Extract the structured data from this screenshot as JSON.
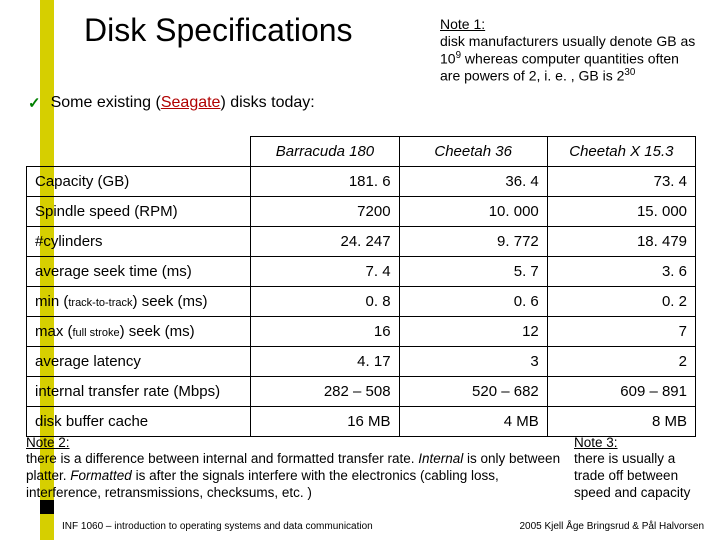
{
  "title": "Disk Specifications",
  "note1": {
    "label": "Note 1:",
    "text_parts": [
      "disk manufacturers usually denote GB as 10",
      "9",
      " whereas computer quantities often are powers of 2, i. e. , GB is 2",
      "30"
    ]
  },
  "bullet": {
    "prefix": "Some existing (",
    "vendor": "Seagate",
    "suffix": ") disks today:"
  },
  "table": {
    "headers": [
      "Barracuda 180",
      "Cheetah 36",
      "Cheetah X 15.3"
    ],
    "rows": [
      {
        "label": "Capacity (GB)",
        "vals": [
          "181. 6",
          "36. 4",
          "73. 4"
        ]
      },
      {
        "label": "Spindle speed (RPM)",
        "vals": [
          "7200",
          "10. 000",
          "15. 000"
        ]
      },
      {
        "label": "#cylinders",
        "vals": [
          "24. 247",
          "9. 772",
          "18. 479"
        ]
      },
      {
        "label": "average seek time (ms)",
        "vals": [
          "7. 4",
          "5. 7",
          "3. 6"
        ]
      },
      {
        "label": "min (|track-to-track|) seek (ms)",
        "tiny_sub": true,
        "vals": [
          "0. 8",
          "0. 6",
          "0. 2"
        ]
      },
      {
        "label": "max (|full stroke|) seek (ms)",
        "tiny_sub": true,
        "vals": [
          "16",
          "12",
          "7"
        ]
      },
      {
        "label": "average latency",
        "vals": [
          "4. 17",
          "3",
          "2"
        ]
      },
      {
        "label": "internal transfer rate (Mbps)",
        "vals": [
          "282 – 508",
          "520 – 682",
          "609 – 891"
        ]
      },
      {
        "label": "disk buffer cache",
        "vals": [
          "16 MB",
          "4 MB",
          "8 MB"
        ]
      }
    ]
  },
  "note2": {
    "label": "Note 2:",
    "text_parts": [
      "there is a difference between internal and formatted transfer rate. ",
      "Internal",
      " is only between platter. ",
      "Formatted",
      "  is after the signals interfere with the electronics (cabling loss, interference, retransmissions, checksums, etc. )"
    ]
  },
  "note3": {
    "label": "Note 3:",
    "text": "there is usually a trade off between speed and capacity"
  },
  "footer": {
    "left": "INF 1060 – introduction to operating systems and data communication",
    "right": "2005 Kjell Åge Bringsrud & Pål Halvorsen"
  },
  "colors": {
    "accent": "#d6cf00",
    "vendor": "#b00000",
    "check": "#008000"
  }
}
